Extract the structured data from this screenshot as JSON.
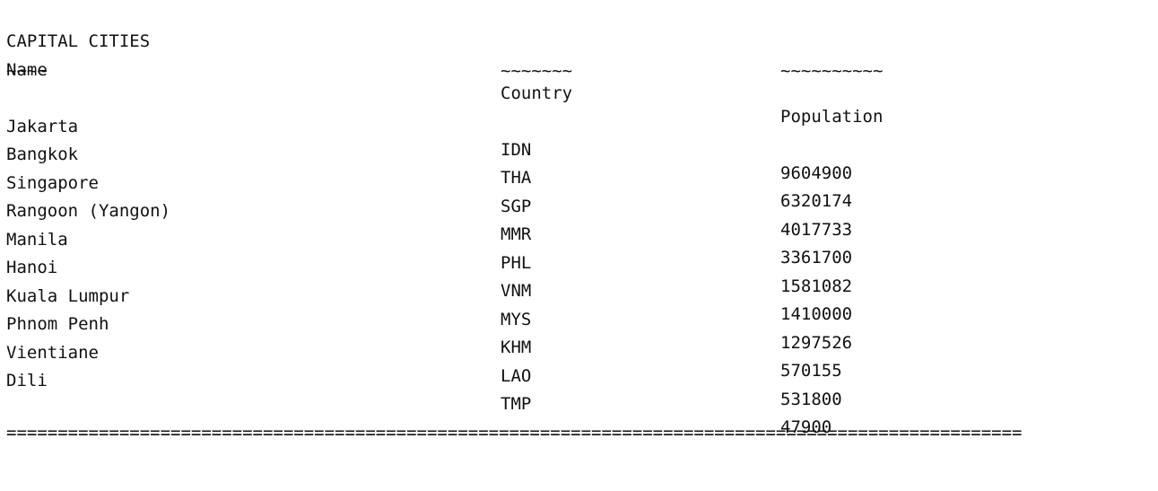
{
  "title": "CAPITAL CITIES",
  "headers": {
    "name": "Name",
    "country": "Country",
    "population": "Population"
  },
  "underline": {
    "name": "~~~~",
    "country": "~~~~~~~",
    "population": "~~~~~~~~~~"
  },
  "rows": [
    {
      "name": "Jakarta",
      "country": "IDN",
      "population": "9604900"
    },
    {
      "name": "Bangkok",
      "country": "THA",
      "population": "6320174"
    },
    {
      "name": "Singapore",
      "country": "SGP",
      "population": "4017733"
    },
    {
      "name": "Rangoon (Yangon)",
      "country": "MMR",
      "population": "3361700"
    },
    {
      "name": "Manila",
      "country": "PHL",
      "population": "1581082"
    },
    {
      "name": "Hanoi",
      "country": "VNM",
      "population": "1410000"
    },
    {
      "name": "Kuala Lumpur",
      "country": "MYS",
      "population": "1297526"
    },
    {
      "name": "Phnom Penh",
      "country": "KHM",
      "population": "570155"
    },
    {
      "name": "Vientiane",
      "country": "LAO",
      "population": "531800"
    },
    {
      "name": "Dili",
      "country": "TMP",
      "population": "47900"
    }
  ],
  "footer": "==================================================================================================="
}
